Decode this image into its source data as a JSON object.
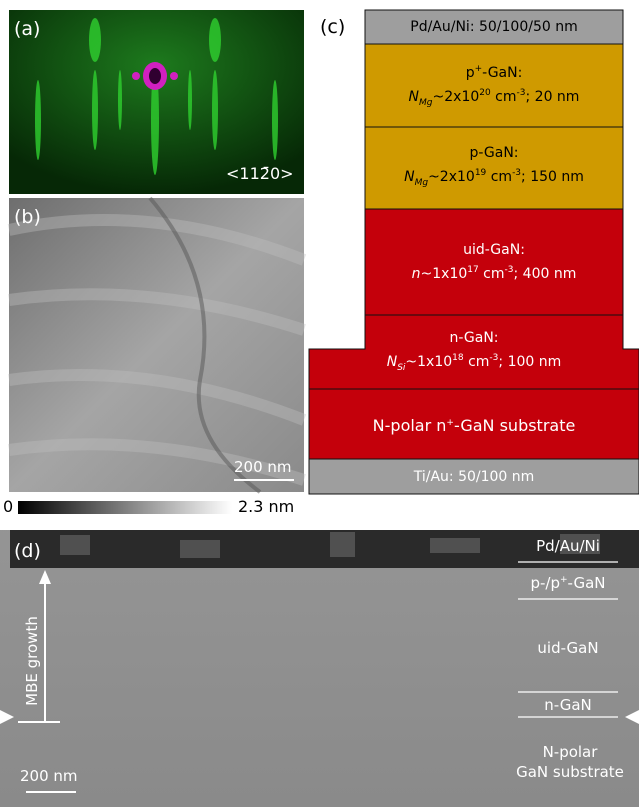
{
  "panels": {
    "a": {
      "label": "(a)",
      "direction": "<112̄0>"
    },
    "b": {
      "label": "(b)",
      "scale_bar": "200 nm",
      "colorbar_min": "0",
      "colorbar_max": "2.3 nm"
    },
    "c": {
      "label": "(c)",
      "layers": [
        {
          "lines": [
            [
              {
                "text": "Pd/Au/Ni: 50/100/50 nm"
              }
            ]
          ]
        },
        {
          "lines": [
            [
              {
                "text": "p"
              },
              {
                "text": "+",
                "style": "sup"
              },
              {
                "text": "-GaN:"
              }
            ],
            [
              {
                "text": "N",
                "style": "italic"
              },
              {
                "text": "Mg",
                "style": "italic-sub"
              },
              {
                "text": "~2x10"
              },
              {
                "text": "20",
                "style": "sup"
              },
              {
                "text": " cm"
              },
              {
                "text": "-3",
                "style": "sup"
              },
              {
                "text": "; 20 nm"
              }
            ]
          ]
        },
        {
          "lines": [
            [
              {
                "text": "p-GaN:"
              }
            ],
            [
              {
                "text": "N",
                "style": "italic"
              },
              {
                "text": "Mg",
                "style": "italic-sub"
              },
              {
                "text": "~2x10"
              },
              {
                "text": "19",
                "style": "sup"
              },
              {
                "text": " cm"
              },
              {
                "text": "-3",
                "style": "sup"
              },
              {
                "text": "; 150 nm"
              }
            ]
          ]
        },
        {
          "lines": [
            [
              {
                "text": "uid-GaN:"
              }
            ],
            [
              {
                "text": "n",
                "style": "italic"
              },
              {
                "text": "~1x10"
              },
              {
                "text": "17",
                "style": "sup"
              },
              {
                "text": " cm"
              },
              {
                "text": "-3",
                "style": "sup"
              },
              {
                "text": "; 400 nm"
              }
            ]
          ]
        },
        {
          "lines": [
            [
              {
                "text": "n-GaN:"
              }
            ],
            [
              {
                "text": "N",
                "style": "italic"
              },
              {
                "text": "Si",
                "style": "italic-sub"
              },
              {
                "text": "~1x10"
              },
              {
                "text": "18",
                "style": "sup"
              },
              {
                "text": " cm"
              },
              {
                "text": "-3",
                "style": "sup"
              },
              {
                "text": "; 100 nm"
              }
            ]
          ]
        },
        {
          "lines": [
            [
              {
                "text": "N-polar n"
              },
              {
                "text": "+",
                "style": "sup"
              },
              {
                "text": "-GaN substrate"
              }
            ]
          ]
        },
        {
          "lines": [
            [
              {
                "text": "Ti/Au: 50/100 nm"
              }
            ]
          ]
        }
      ]
    },
    "d": {
      "label": "(d)",
      "scale_bar": "200 nm",
      "growth": "MBE growth",
      "regions": [
        {
          "lines": [
            [
              {
                "text": "Pd/Au/Ni"
              }
            ]
          ]
        },
        {
          "lines": [
            [
              {
                "text": "p-/p"
              },
              {
                "text": "+",
                "style": "sup"
              },
              {
                "text": "-GaN"
              }
            ]
          ]
        },
        {
          "lines": [
            [
              {
                "text": "uid-GaN"
              }
            ]
          ]
        },
        {
          "lines": [
            [
              {
                "text": "n-GaN"
              }
            ]
          ]
        },
        {
          "lines": [
            [
              {
                "text": "N-polar"
              }
            ],
            [
              {
                "text": "GaN substrate"
              }
            ]
          ]
        }
      ]
    }
  }
}
